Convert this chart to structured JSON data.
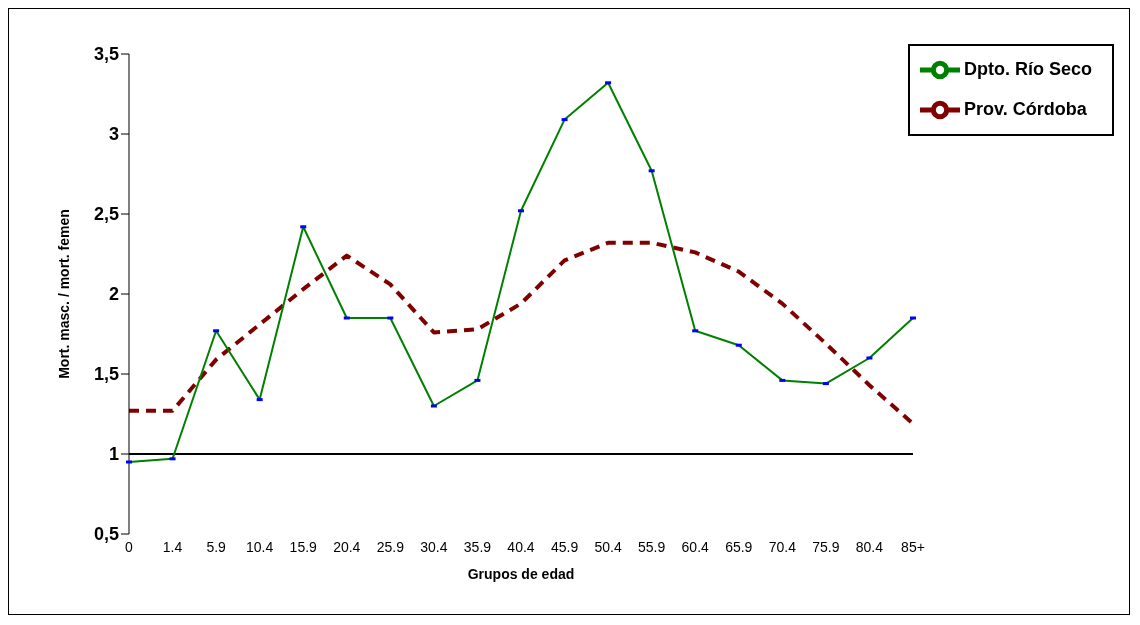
{
  "chart_data": {
    "type": "line",
    "xlabel": "Grupos de edad",
    "ylabel": "Mort. masc. / mort. femen",
    "categories": [
      "0",
      "1.4",
      "5.9",
      "10.4",
      "15.9",
      "20.4",
      "25.9",
      "30.4",
      "35.9",
      "40.4",
      "45.9",
      "50.4",
      "55.9",
      "60.4",
      "65.9",
      "70.4",
      "75.9",
      "80.4",
      "85+"
    ],
    "series": [
      {
        "name": "Prov. Córdoba",
        "color": "#800000",
        "line_style": "dashed",
        "marker": "none",
        "values": [
          1.27,
          1.27,
          1.59,
          1.81,
          2.03,
          2.24,
          2.06,
          1.76,
          1.78,
          1.94,
          2.21,
          2.32,
          2.32,
          2.26,
          2.14,
          1.94,
          1.69,
          1.43,
          1.19
        ]
      },
      {
        "name": "Dpto. Río Seco",
        "color": "#008000",
        "line_style": "solid",
        "marker": "square",
        "values": [
          0.95,
          0.97,
          1.77,
          1.34,
          2.42,
          1.85,
          1.85,
          1.3,
          1.46,
          2.52,
          3.09,
          3.32,
          2.77,
          1.77,
          1.68,
          1.46,
          1.44,
          1.6,
          1.85
        ]
      }
    ],
    "ylim": [
      0.5,
      3.5
    ],
    "yticks": [
      {
        "value": 0.5,
        "label": "0,5"
      },
      1,
      {
        "value": 1.5,
        "label": "1,5"
      },
      2,
      {
        "value": 2.5,
        "label": "2,5"
      },
      3,
      {
        "value": 3.5,
        "label": "3,5"
      }
    ],
    "ref_lines": [
      {
        "axis": "y",
        "value": 1,
        "color": "#000000"
      }
    ],
    "grid": false,
    "legend": "top right"
  }
}
